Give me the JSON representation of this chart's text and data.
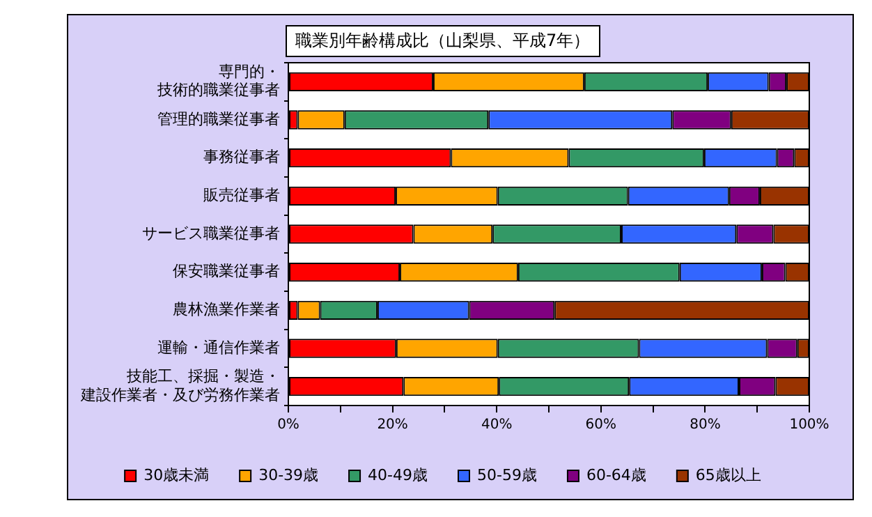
{
  "chart_data": {
    "type": "bar",
    "orientation": "horizontal",
    "stacked": true,
    "title": "職業別年齢構成比（山梨県、平成7年）",
    "categories": [
      "専門的・技術的職業従事者",
      "管理的職業従事者",
      "事務従事者",
      "販売従事者",
      "サービス職業従事者",
      "保安職業従事者",
      "農林漁業作業者",
      "運輸・通信作業者",
      "技能工、採掘・製造・建設作業者・及び労務作業者"
    ],
    "series": [
      {
        "name": "30歳未満",
        "color": "#ff0000",
        "values": [
          27.8,
          1.8,
          31.2,
          20.6,
          24.0,
          21.4,
          1.8,
          20.7,
          22.1
        ]
      },
      {
        "name": "30-39歳",
        "color": "#ffa500",
        "values": [
          29.0,
          9.0,
          22.6,
          19.6,
          15.2,
          22.7,
          4.3,
          19.5,
          18.3
        ]
      },
      {
        "name": "40-49歳",
        "color": "#339966",
        "values": [
          23.7,
          27.6,
          26.0,
          25.0,
          24.7,
          31.0,
          11.0,
          27.1,
          25.0
        ]
      },
      {
        "name": "50-59歳",
        "color": "#3366ff",
        "values": [
          11.7,
          35.3,
          14.0,
          19.4,
          22.1,
          15.8,
          17.6,
          24.6,
          21.1
        ]
      },
      {
        "name": "60-64歳",
        "color": "#800080",
        "values": [
          3.4,
          11.3,
          3.3,
          5.9,
          7.1,
          4.5,
          16.4,
          5.8,
          7.0
        ]
      },
      {
        "name": "65歳以上",
        "color": "#993300",
        "values": [
          4.4,
          15.0,
          2.9,
          9.5,
          6.9,
          4.6,
          48.9,
          2.3,
          6.5
        ]
      }
    ],
    "xlim": [
      0,
      100
    ],
    "xticks": [
      {
        "value": 0,
        "label": "0%"
      },
      {
        "value": 10,
        "label": null
      },
      {
        "value": 20,
        "label": "20%"
      },
      {
        "value": 30,
        "label": null
      },
      {
        "value": 40,
        "label": "40%"
      },
      {
        "value": 50,
        "label": null
      },
      {
        "value": 60,
        "label": "60%"
      },
      {
        "value": 70,
        "label": null
      },
      {
        "value": 80,
        "label": "80%"
      },
      {
        "value": 90,
        "label": null
      },
      {
        "value": 100,
        "label": "100%"
      }
    ],
    "grid": false,
    "legend": "bottom"
  }
}
